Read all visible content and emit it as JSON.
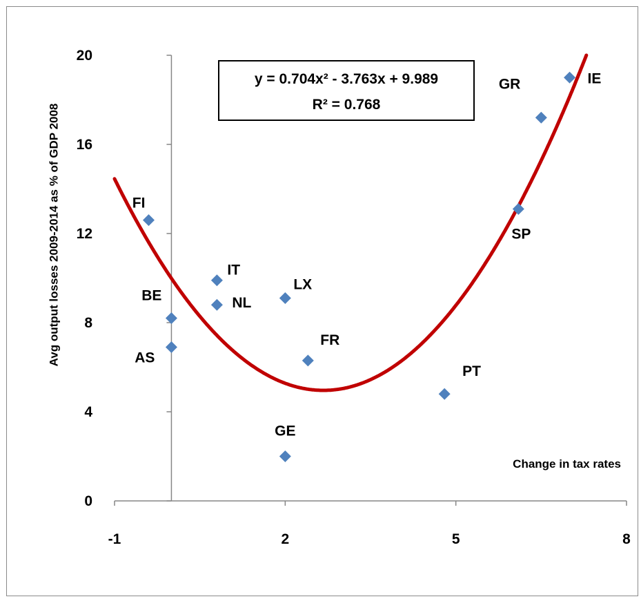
{
  "chart_data": {
    "type": "scatter",
    "xlabel": "Change in tax rates",
    "ylabel": "Avg output losses 2009-2014 as % of GDP 2008",
    "xlim": [
      -1,
      8
    ],
    "ylim": [
      0,
      20
    ],
    "x_ticks": [
      "-1",
      "2",
      "5",
      "8"
    ],
    "y_ticks": [
      "0",
      "4",
      "8",
      "12",
      "16",
      "20"
    ],
    "points": [
      {
        "label": "FI",
        "x": -0.4,
        "y": 12.6
      },
      {
        "label": "BE",
        "x": 0.0,
        "y": 8.2
      },
      {
        "label": "AS",
        "x": 0.0,
        "y": 6.9
      },
      {
        "label": "IT",
        "x": 0.8,
        "y": 9.9
      },
      {
        "label": "NL",
        "x": 0.8,
        "y": 8.8
      },
      {
        "label": "LX",
        "x": 2.0,
        "y": 9.1
      },
      {
        "label": "FR",
        "x": 2.4,
        "y": 6.3
      },
      {
        "label": "GE",
        "x": 2.0,
        "y": 2.0
      },
      {
        "label": "PT",
        "x": 4.8,
        "y": 4.8
      },
      {
        "label": "SP",
        "x": 6.1,
        "y": 13.1
      },
      {
        "label": "GR",
        "x": 6.5,
        "y": 17.2
      },
      {
        "label": "IE",
        "x": 7.0,
        "y": 19.0
      }
    ],
    "trendline": {
      "type": "polynomial",
      "coefficients": {
        "a": 0.704,
        "b": -3.763,
        "c": 9.989
      },
      "equation": "y = 0.704x² - 3.763x + 9.989",
      "r_squared": "R² = 0.768",
      "color": "#c00000"
    },
    "marker_color": "#4f81bd",
    "grid": false,
    "legend": "none"
  }
}
